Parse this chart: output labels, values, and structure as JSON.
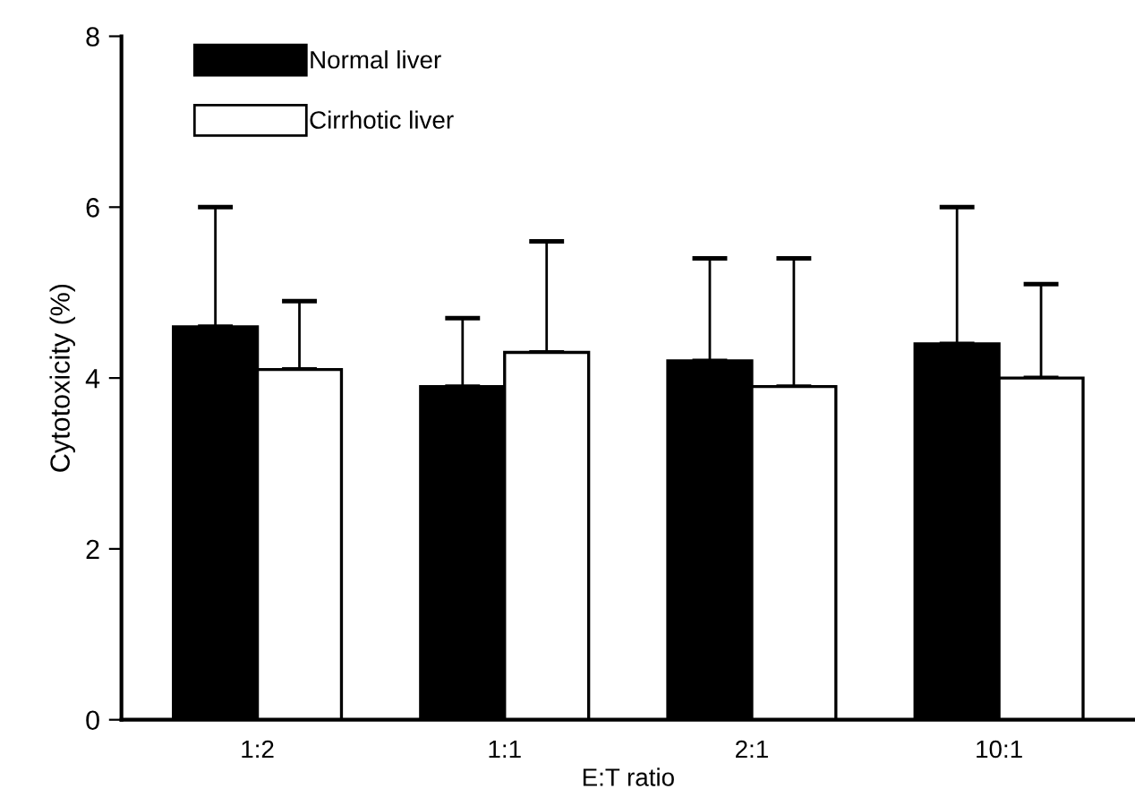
{
  "chart_data": {
    "type": "bar",
    "xlabel": "E:T ratio",
    "ylabel": "Cytotoxicity (%)",
    "categories": [
      "1:2",
      "1:1",
      "2:1",
      "10:1"
    ],
    "series": [
      {
        "name": "Normal liver",
        "color": "#000000",
        "values": [
          4.6,
          3.9,
          4.2,
          4.4
        ],
        "errors": [
          [
            4.6,
            6.0
          ],
          [
            3.9,
            4.7
          ],
          [
            4.2,
            5.4
          ],
          [
            4.4,
            6.0
          ]
        ]
      },
      {
        "name": "Cirrhotic liver",
        "color": "#ffffff",
        "values": [
          4.1,
          4.3,
          3.9,
          4.0
        ],
        "errors": [
          [
            4.1,
            4.9
          ],
          [
            4.3,
            5.6
          ],
          [
            3.9,
            5.4
          ],
          [
            4.0,
            5.1
          ]
        ]
      }
    ],
    "ylim": [
      0,
      8
    ],
    "yticks": [
      0,
      2,
      4,
      6,
      8
    ],
    "grid": false,
    "legend": "top left"
  }
}
